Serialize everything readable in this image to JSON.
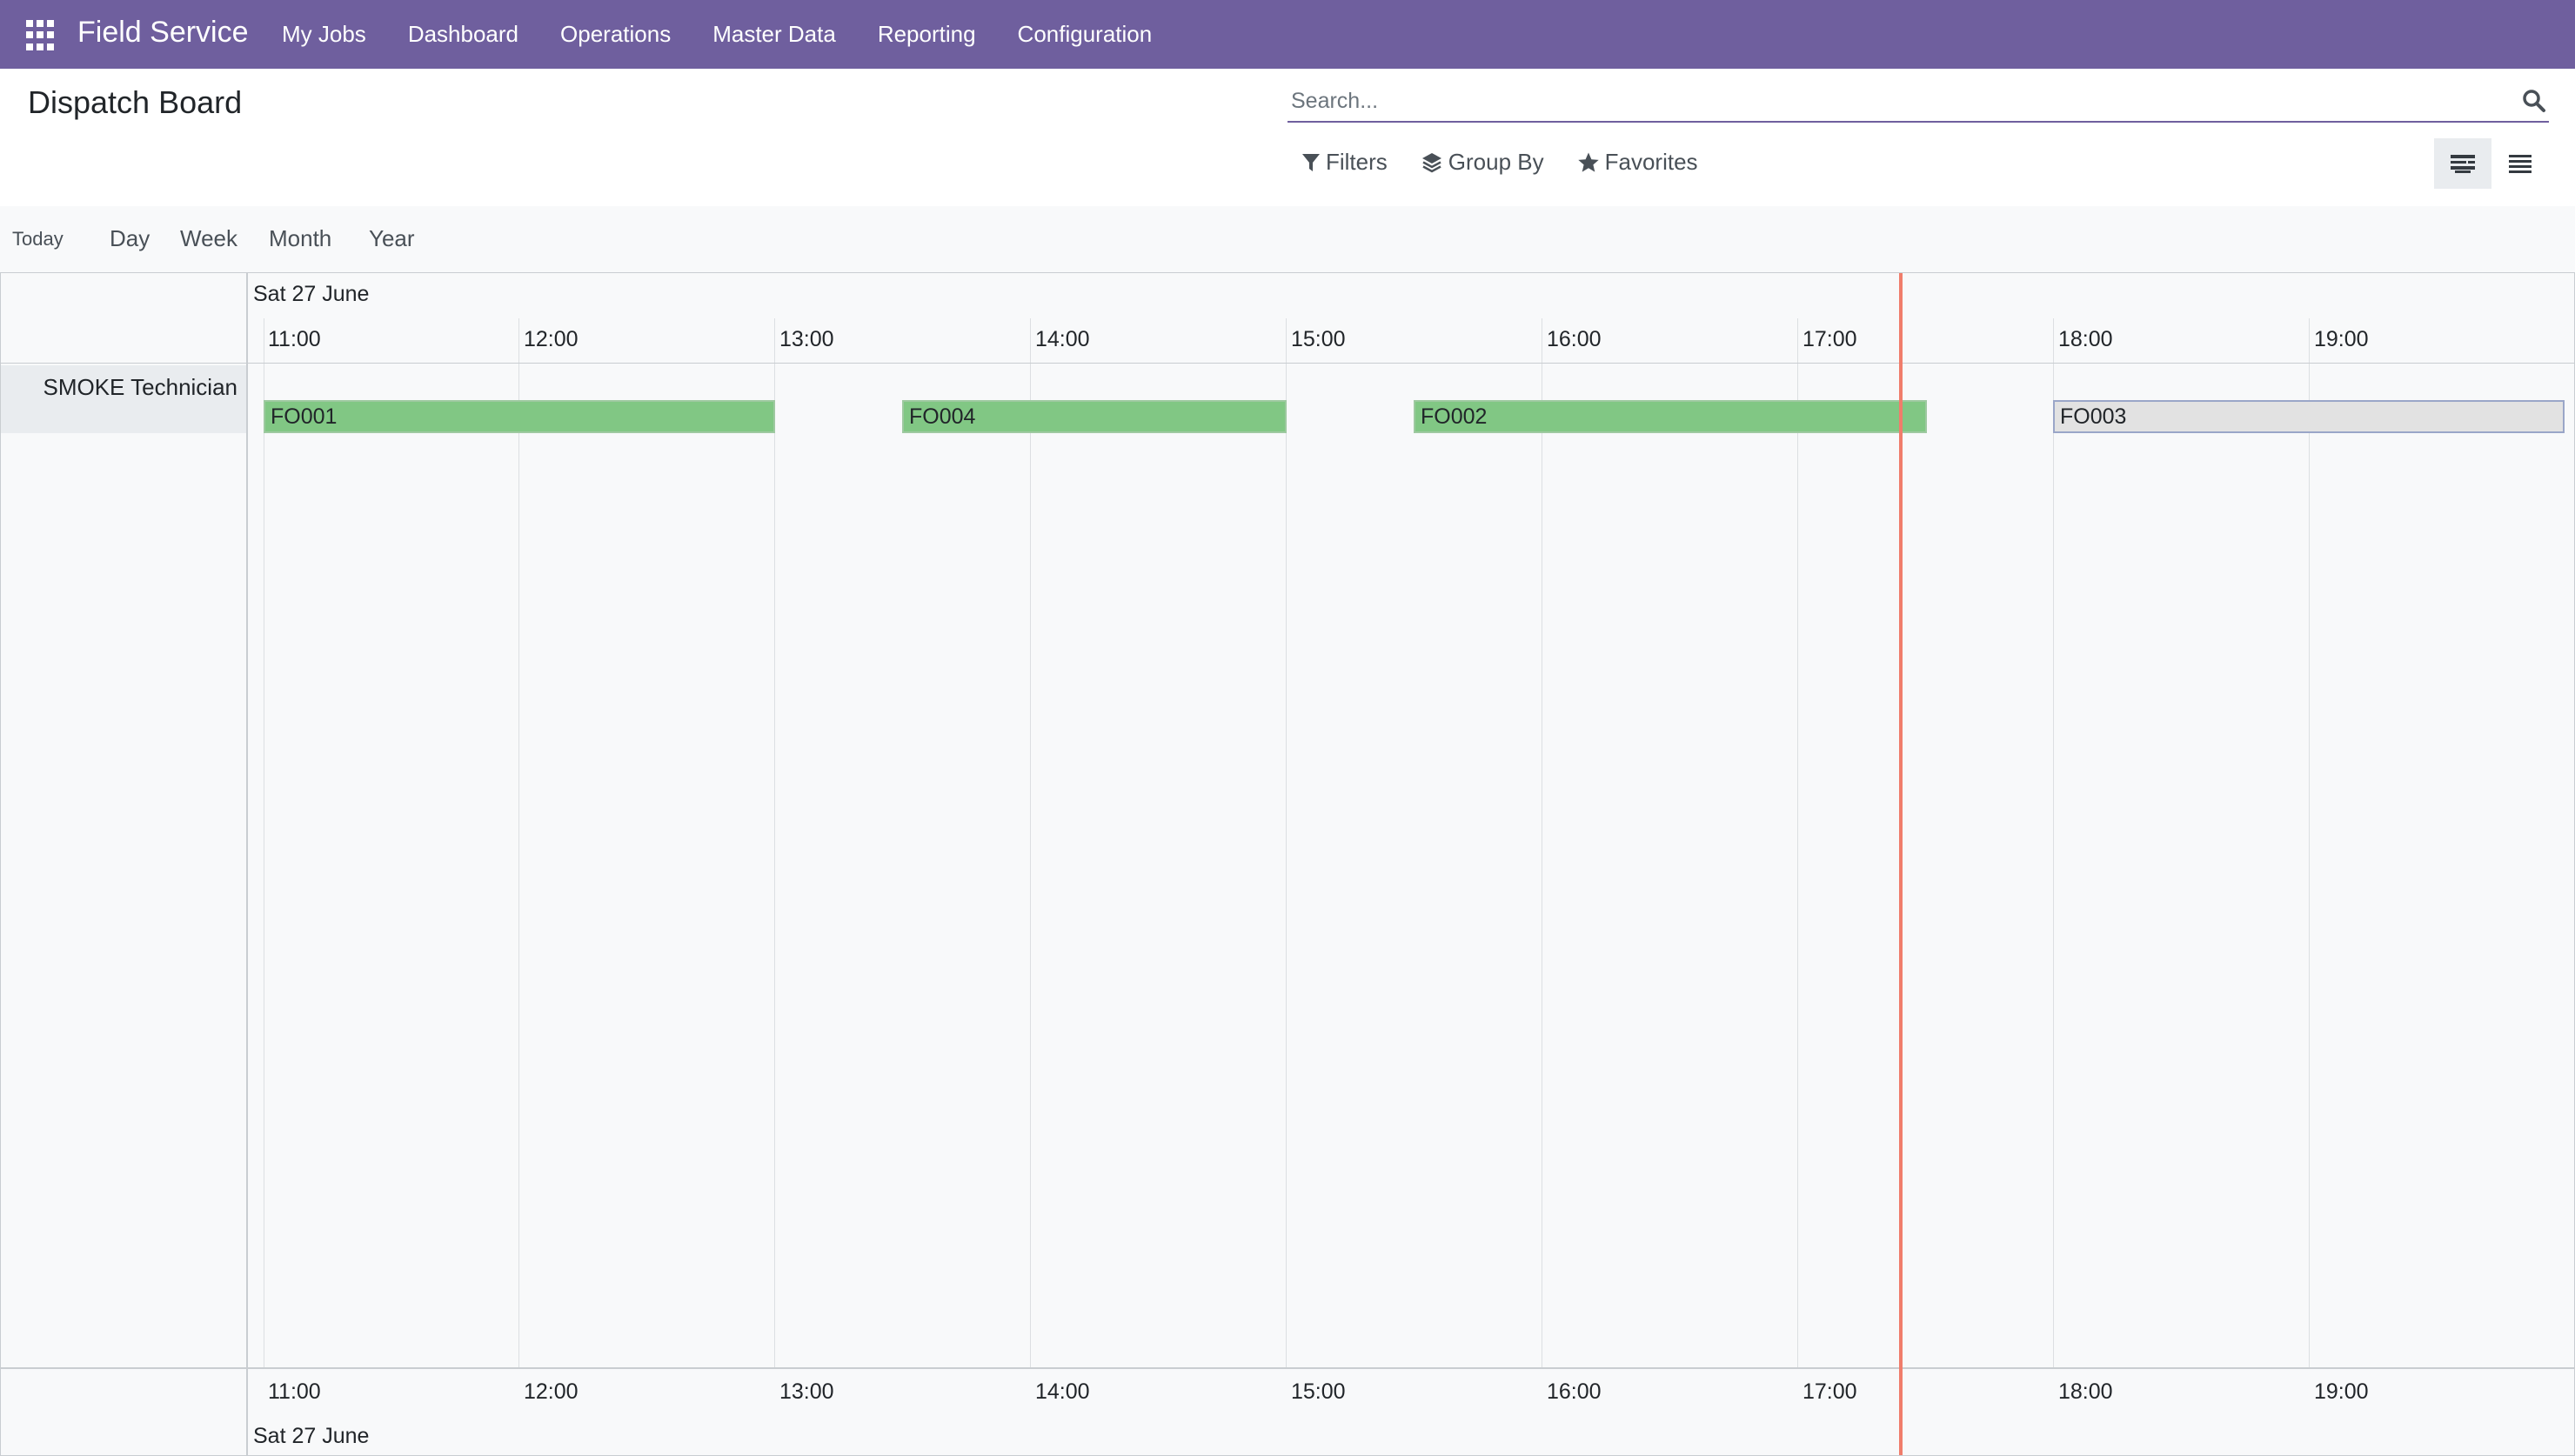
{
  "navbar": {
    "brand": "Field Service",
    "items": [
      "My Jobs",
      "Dashboard",
      "Operations",
      "Master Data",
      "Reporting",
      "Configuration"
    ]
  },
  "control_panel": {
    "title": "Dispatch Board",
    "search_placeholder": "Search...",
    "filters_label": "Filters",
    "group_by_label": "Group By",
    "favorites_label": "Favorites"
  },
  "scale": {
    "today": "Today",
    "day": "Day",
    "week": "Week",
    "month": "Month",
    "year": "Year"
  },
  "gantt": {
    "date": "Sat 27 June",
    "hours": [
      "11:00",
      "12:00",
      "13:00",
      "14:00",
      "15:00",
      "16:00",
      "17:00",
      "18:00",
      "19:00"
    ],
    "row_label": "SMOKE Technician",
    "orders": [
      {
        "name": "FO001",
        "status": "green"
      },
      {
        "name": "FO004",
        "status": "green"
      },
      {
        "name": "FO002",
        "status": "green"
      },
      {
        "name": "FO003",
        "status": "grey"
      }
    ]
  },
  "colors": {
    "navbar": "#6f5f9e",
    "pill_green": "#81c784",
    "pill_grey": "#e2e2e2",
    "now_line": "#f07d6b"
  }
}
